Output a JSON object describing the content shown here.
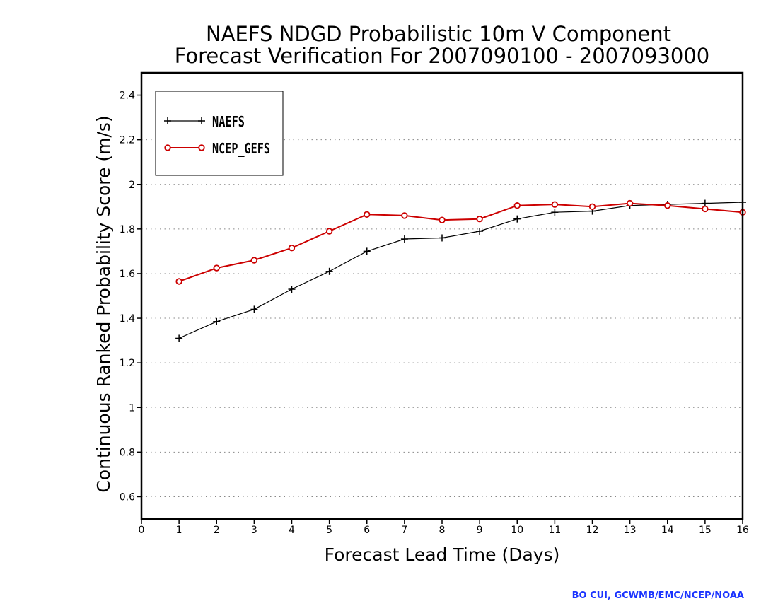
{
  "chart_data": {
    "type": "line",
    "title_lines": [
      "NAEFS NDGD Probabilistic 10m V Component",
      "Forecast Verification For 2007090100 - 2007093000"
    ],
    "xlabel": "Forecast Lead Time (Days)",
    "ylabel": "Continuous Ranked Probability Score (m/s)",
    "xlim": [
      0,
      16
    ],
    "ylim": [
      0.5,
      2.5
    ],
    "x_ticks": [
      0,
      1,
      2,
      3,
      4,
      5,
      6,
      7,
      8,
      9,
      10,
      11,
      12,
      13,
      14,
      15,
      16
    ],
    "y_ticks": [
      0.6,
      0.8,
      1,
      1.2,
      1.4,
      1.6,
      1.8,
      2,
      2.2,
      2.4
    ],
    "y_tick_labels": [
      "0.6",
      "0.8",
      "1",
      "1.2",
      "1.4",
      "1.6",
      "1.8",
      "2",
      "2.2",
      "2.4"
    ],
    "grid": "horizontal dotted",
    "legend_position": "top-left",
    "x": [
      1,
      2,
      3,
      4,
      5,
      6,
      7,
      8,
      9,
      10,
      11,
      12,
      13,
      14,
      15,
      16
    ],
    "series": [
      {
        "name": "NAEFS",
        "color": "#000000",
        "marker": "plus",
        "values": [
          1.31,
          1.385,
          1.44,
          1.53,
          1.61,
          1.7,
          1.755,
          1.76,
          1.79,
          1.845,
          1.875,
          1.88,
          1.905,
          1.91,
          1.915,
          1.92
        ]
      },
      {
        "name": "NCEP_GEFS",
        "color": "#cc0000",
        "marker": "circle",
        "values": [
          1.565,
          1.625,
          1.66,
          1.715,
          1.79,
          1.865,
          1.86,
          1.84,
          1.845,
          1.905,
          1.91,
          1.9,
          1.915,
          1.905,
          1.89,
          1.875
        ]
      }
    ]
  },
  "credit": "BO CUI, GCWMB/EMC/NCEP/NOAA"
}
